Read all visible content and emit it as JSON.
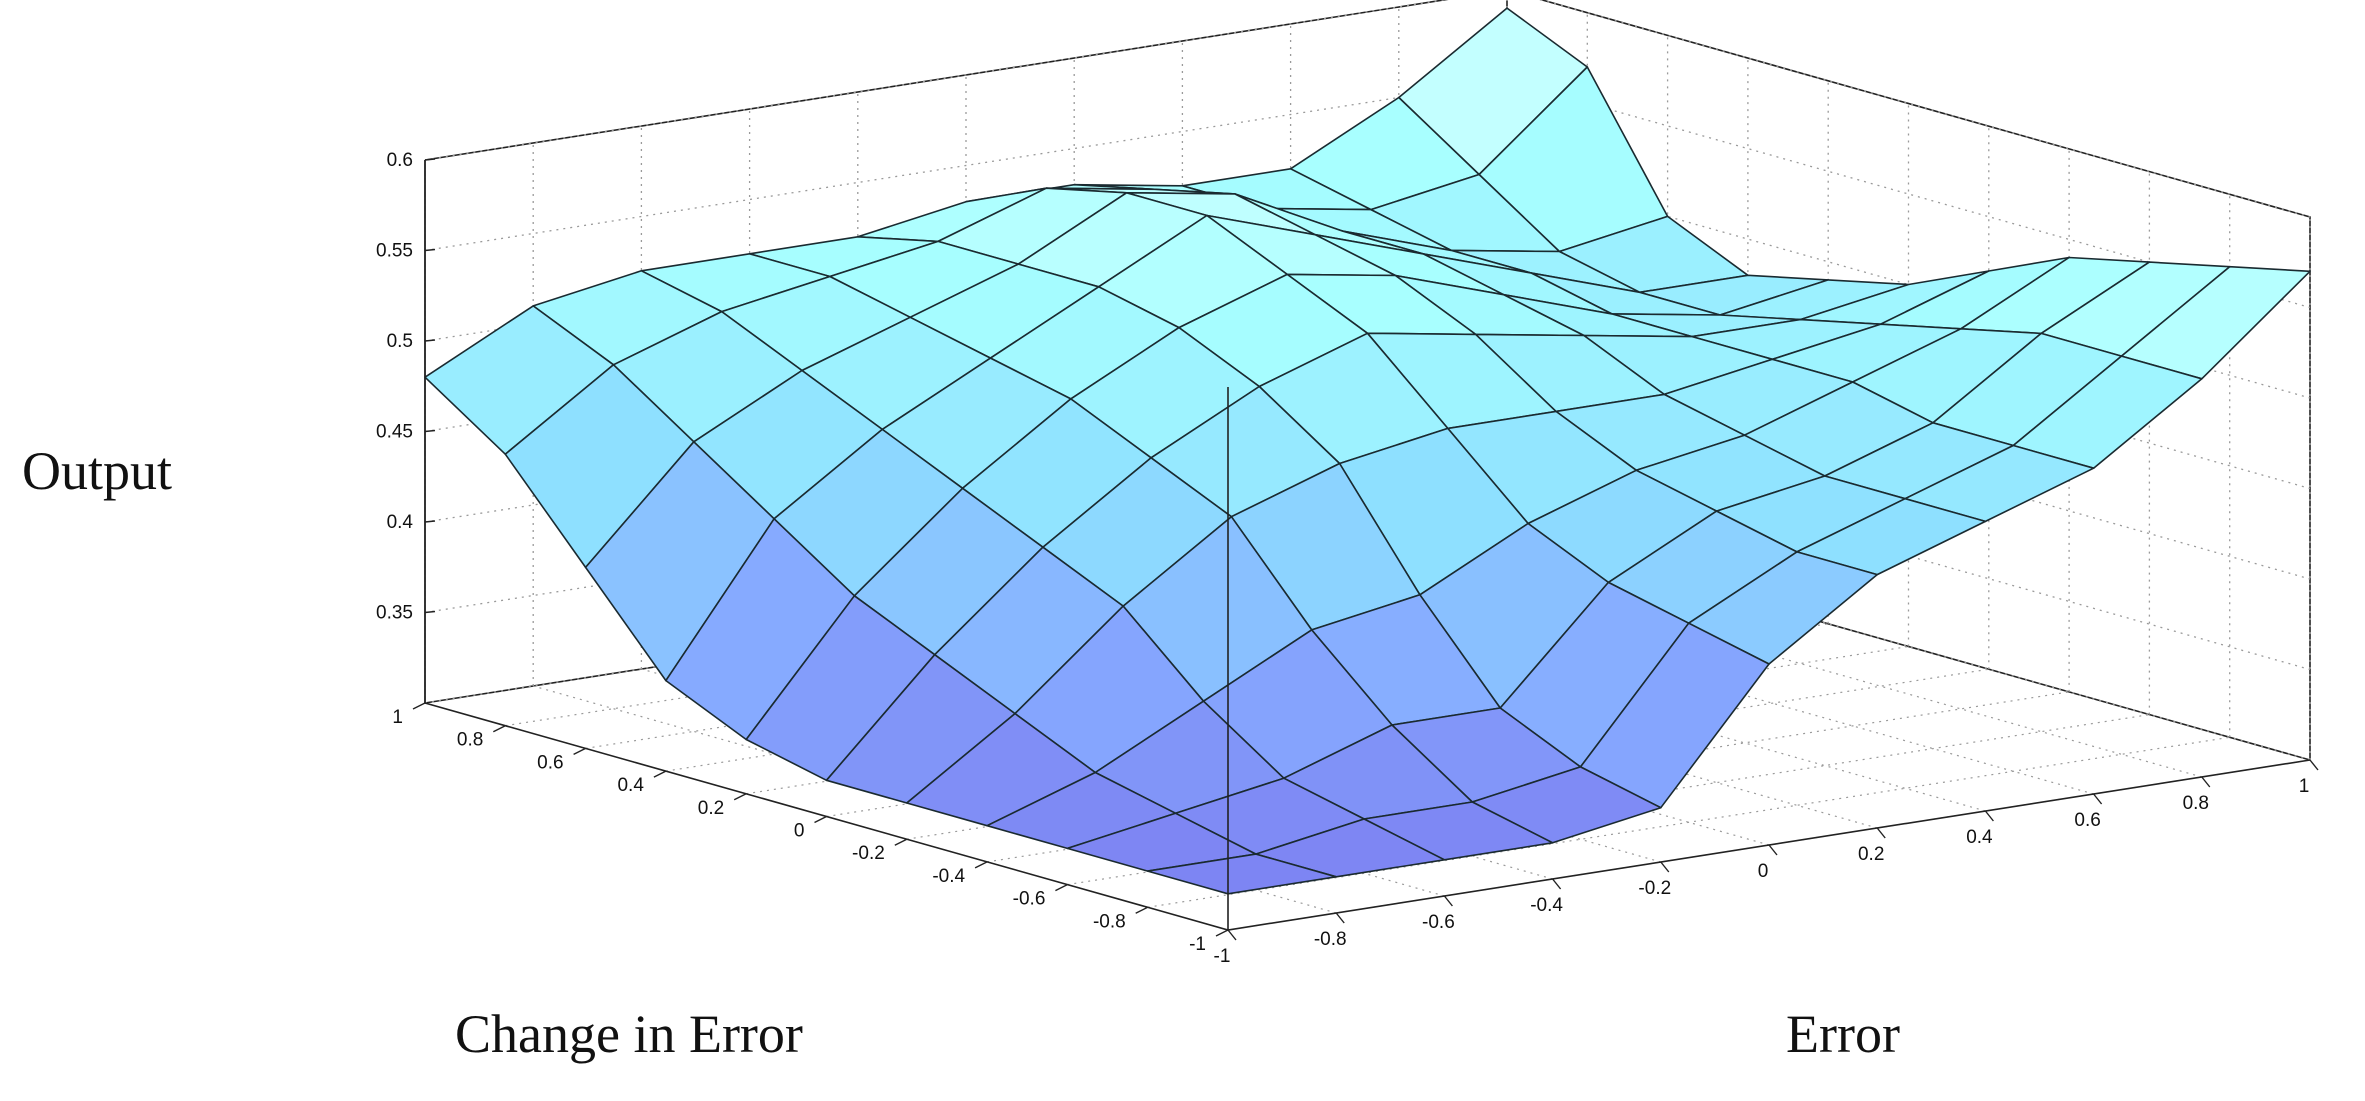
{
  "chart_data": {
    "type": "surface3d",
    "title": "",
    "xlabel": "Error",
    "ylabel": "Change in Error",
    "zlabel": "Output",
    "xlim": [
      -1,
      1
    ],
    "ylim": [
      -1,
      1
    ],
    "zlim": [
      0.3,
      0.6
    ],
    "grid": true,
    "x_ticks": [
      "-1",
      "-0.8",
      "-0.6",
      "-0.4",
      "-0.2",
      "0",
      "0.2",
      "0.4",
      "0.6",
      "0.8",
      "1"
    ],
    "y_ticks": [
      "-1",
      "-0.8",
      "-0.6",
      "-0.4",
      "-0.2",
      "0",
      "0.2",
      "0.4",
      "0.6",
      "0.8",
      "1"
    ],
    "z_ticks": [
      "0.35",
      "0.4",
      "0.45",
      "0.5",
      "0.55",
      "0.6"
    ],
    "x": [
      -1,
      -0.8,
      -0.6,
      -0.4,
      -0.2,
      0,
      0.2,
      0.4,
      0.6,
      0.8,
      1
    ],
    "y": [
      -1,
      -0.8,
      -0.6,
      -0.4,
      -0.2,
      0,
      0.2,
      0.4,
      0.6,
      0.8,
      1
    ],
    "z": [
      [
        0.32,
        0.32,
        0.32,
        0.32,
        0.33,
        0.4,
        0.44,
        0.46,
        0.48,
        0.52,
        0.57
      ],
      [
        0.32,
        0.32,
        0.33,
        0.33,
        0.34,
        0.41,
        0.44,
        0.46,
        0.48,
        0.52,
        0.56
      ],
      [
        0.32,
        0.33,
        0.34,
        0.36,
        0.36,
        0.42,
        0.45,
        0.46,
        0.48,
        0.52,
        0.55
      ],
      [
        0.32,
        0.34,
        0.37,
        0.4,
        0.41,
        0.44,
        0.46,
        0.47,
        0.49,
        0.51,
        0.54
      ],
      [
        0.32,
        0.36,
        0.41,
        0.45,
        0.47,
        0.48,
        0.48,
        0.48,
        0.49,
        0.5,
        0.52
      ],
      [
        0.32,
        0.38,
        0.43,
        0.47,
        0.5,
        0.52,
        0.51,
        0.5,
        0.49,
        0.49,
        0.5
      ],
      [
        0.33,
        0.4,
        0.45,
        0.49,
        0.52,
        0.54,
        0.53,
        0.51,
        0.49,
        0.48,
        0.49
      ],
      [
        0.35,
        0.43,
        0.47,
        0.5,
        0.53,
        0.56,
        0.54,
        0.52,
        0.5,
        0.48,
        0.48
      ],
      [
        0.4,
        0.46,
        0.49,
        0.51,
        0.53,
        0.56,
        0.55,
        0.52,
        0.5,
        0.49,
        0.5
      ],
      [
        0.45,
        0.49,
        0.51,
        0.52,
        0.53,
        0.55,
        0.54,
        0.52,
        0.51,
        0.52,
        0.57
      ],
      [
        0.48,
        0.51,
        0.52,
        0.52,
        0.52,
        0.53,
        0.53,
        0.52,
        0.52,
        0.55,
        0.59
      ]
    ],
    "colormap": [
      "#7a78ee",
      "#86a8ff",
      "#8ee0ff",
      "#a8ffff",
      "#e6ffff"
    ]
  }
}
